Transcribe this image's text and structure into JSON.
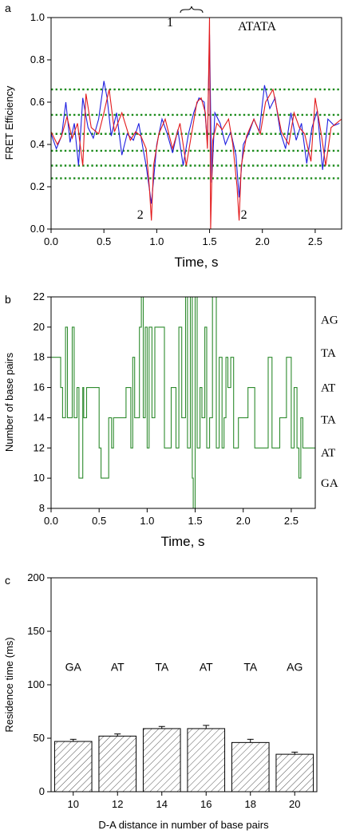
{
  "colors": {
    "blue": "#1f1fe0",
    "red": "#e31a1c",
    "dotted": "#1a8a1a",
    "steps": "#2e8b2e",
    "axis": "#000000",
    "bar_fill": "#ffffff",
    "hatch": "#444444"
  },
  "chart_data": [
    {
      "panel": "a",
      "type": "line",
      "ylabel": "FRET Efficiency",
      "xlabel": "Time, s",
      "xlim": [
        0.0,
        2.75
      ],
      "ylim": [
        0.0,
        1.0
      ],
      "xticks": [
        "0.0",
        "0.5",
        "1.0",
        "1.5",
        "2.0",
        "2.5"
      ],
      "yticks": [
        "0.0",
        "0.2",
        "0.4",
        "0.6",
        "0.8",
        "1.0"
      ],
      "annotation": "ATATA",
      "peak_marker": "1",
      "dip_markers": [
        "2",
        "2"
      ],
      "dip_x": [
        0.95,
        1.78
      ],
      "peak_x": 1.5,
      "reference_levels": [
        0.24,
        0.3,
        0.37,
        0.45,
        0.54,
        0.66
      ],
      "series": [
        {
          "x": [
            0.0,
            0.05,
            0.1,
            0.14,
            0.18,
            0.22,
            0.26,
            0.3,
            0.35,
            0.4,
            0.45,
            0.5,
            0.53,
            0.57,
            0.62,
            0.67,
            0.72,
            0.78,
            0.83,
            0.87,
            0.9,
            0.95,
            1.0,
            1.05,
            1.1,
            1.15,
            1.2,
            1.25,
            1.3,
            1.35,
            1.4,
            1.45,
            1.48,
            1.5,
            1.52,
            1.55,
            1.6,
            1.65,
            1.7,
            1.75,
            1.78,
            1.82,
            1.87,
            1.92,
            1.97,
            2.02,
            2.07,
            2.12,
            2.17,
            2.22,
            2.27,
            2.32,
            2.37,
            2.42,
            2.47,
            2.52,
            2.57,
            2.62,
            2.68,
            2.73
          ],
          "y": [
            0.45,
            0.38,
            0.44,
            0.6,
            0.41,
            0.5,
            0.3,
            0.62,
            0.48,
            0.43,
            0.52,
            0.7,
            0.62,
            0.44,
            0.55,
            0.35,
            0.45,
            0.42,
            0.5,
            0.38,
            0.3,
            0.12,
            0.4,
            0.52,
            0.45,
            0.36,
            0.47,
            0.3,
            0.45,
            0.55,
            0.62,
            0.6,
            0.4,
            0.92,
            0.22,
            0.55,
            0.5,
            0.4,
            0.46,
            0.35,
            0.15,
            0.4,
            0.45,
            0.52,
            0.46,
            0.68,
            0.57,
            0.62,
            0.46,
            0.38,
            0.55,
            0.42,
            0.5,
            0.31,
            0.48,
            0.56,
            0.28,
            0.52,
            0.49,
            0.5
          ]
        },
        {
          "x": [
            0.0,
            0.06,
            0.1,
            0.15,
            0.2,
            0.25,
            0.3,
            0.33,
            0.38,
            0.45,
            0.5,
            0.55,
            0.6,
            0.67,
            0.75,
            0.8,
            0.85,
            0.9,
            0.93,
            0.95,
            0.97,
            1.02,
            1.08,
            1.15,
            1.22,
            1.28,
            1.33,
            1.38,
            1.42,
            1.46,
            1.48,
            1.5,
            1.51,
            1.53,
            1.57,
            1.62,
            1.68,
            1.72,
            1.76,
            1.78,
            1.8,
            1.85,
            1.92,
            1.98,
            2.03,
            2.1,
            2.18,
            2.25,
            2.3,
            2.35,
            2.4,
            2.46,
            2.5,
            2.56,
            2.6,
            2.65,
            2.75
          ],
          "y": [
            0.46,
            0.4,
            0.44,
            0.53,
            0.43,
            0.5,
            0.3,
            0.64,
            0.48,
            0.45,
            0.55,
            0.66,
            0.46,
            0.55,
            0.42,
            0.46,
            0.44,
            0.38,
            0.2,
            0.04,
            0.3,
            0.45,
            0.52,
            0.38,
            0.5,
            0.3,
            0.45,
            0.6,
            0.62,
            0.55,
            0.38,
            1.0,
            0.0,
            0.42,
            0.5,
            0.47,
            0.52,
            0.4,
            0.2,
            0.04,
            0.3,
            0.44,
            0.52,
            0.45,
            0.6,
            0.66,
            0.46,
            0.4,
            0.55,
            0.48,
            0.45,
            0.32,
            0.62,
            0.44,
            0.3,
            0.48,
            0.52
          ]
        }
      ]
    },
    {
      "panel": "b",
      "type": "line",
      "ylabel": "Number of base pairs",
      "xlabel": "Time, s",
      "xlim": [
        0.0,
        2.75
      ],
      "ylim": [
        8,
        22
      ],
      "xticks": [
        "0.0",
        "0.5",
        "1.0",
        "1.5",
        "2.0",
        "2.5"
      ],
      "yticks": [
        "8",
        "10",
        "12",
        "14",
        "16",
        "18",
        "20",
        "22"
      ],
      "right_labels": [
        {
          "y": 20.5,
          "text": "AG"
        },
        {
          "y": 18.3,
          "text": "TA"
        },
        {
          "y": 16.0,
          "text": "AT"
        },
        {
          "y": 13.9,
          "text": "TA"
        },
        {
          "y": 11.7,
          "text": "AT"
        },
        {
          "y": 9.7,
          "text": "GA"
        }
      ],
      "series": [
        {
          "x": [
            0.0,
            0.1,
            0.12,
            0.15,
            0.17,
            0.22,
            0.24,
            0.27,
            0.29,
            0.33,
            0.34,
            0.37,
            0.5,
            0.52,
            0.54,
            0.6,
            0.63,
            0.65,
            0.66,
            0.78,
            0.83,
            0.85,
            0.87,
            0.92,
            0.94,
            0.96,
            0.98,
            1.0,
            1.02,
            1.05,
            1.08,
            1.12,
            1.18,
            1.25,
            1.3,
            1.33,
            1.36,
            1.4,
            1.42,
            1.45,
            1.47,
            1.48,
            1.5,
            1.52,
            1.55,
            1.57,
            1.6,
            1.62,
            1.65,
            1.68,
            1.72,
            1.75,
            1.78,
            1.8,
            1.82,
            1.84,
            1.87,
            1.9,
            1.95,
            2.0,
            2.05,
            2.12,
            2.2,
            2.26,
            2.3,
            2.35,
            2.38,
            2.45,
            2.5,
            2.53,
            2.56,
            2.58,
            2.6,
            2.62,
            2.64,
            2.75
          ],
          "y": [
            18,
            16,
            14,
            20,
            14,
            20,
            14,
            16,
            10,
            16,
            14,
            16,
            12,
            10,
            10,
            14,
            12,
            14,
            14,
            16,
            12,
            18,
            14,
            20,
            22,
            14,
            20,
            12,
            20,
            14,
            20,
            20,
            12,
            16,
            12,
            20,
            14,
            22,
            12,
            22,
            10,
            8,
            22,
            12,
            16,
            14,
            20,
            12,
            14,
            22,
            12,
            18,
            12,
            14,
            18,
            16,
            18,
            12,
            14,
            14,
            16,
            12,
            12,
            18,
            12,
            12,
            14,
            18,
            12,
            16,
            12,
            10,
            14,
            12,
            12,
            12
          ]
        }
      ]
    },
    {
      "panel": "c",
      "type": "bar",
      "ylabel": "Residence time (ms)",
      "xlabel": "D-A distance in number of base pairs",
      "ylim": [
        0,
        200
      ],
      "yticks": [
        "0",
        "50",
        "100",
        "150",
        "200"
      ],
      "categories": [
        "10",
        "12",
        "14",
        "16",
        "18",
        "20"
      ],
      "bar_labels": [
        "GA",
        "AT",
        "TA",
        "AT",
        "TA",
        "AG"
      ],
      "values": [
        47,
        52,
        59,
        59,
        46,
        35
      ],
      "errors": [
        2,
        2,
        2,
        3,
        3,
        2
      ]
    }
  ]
}
